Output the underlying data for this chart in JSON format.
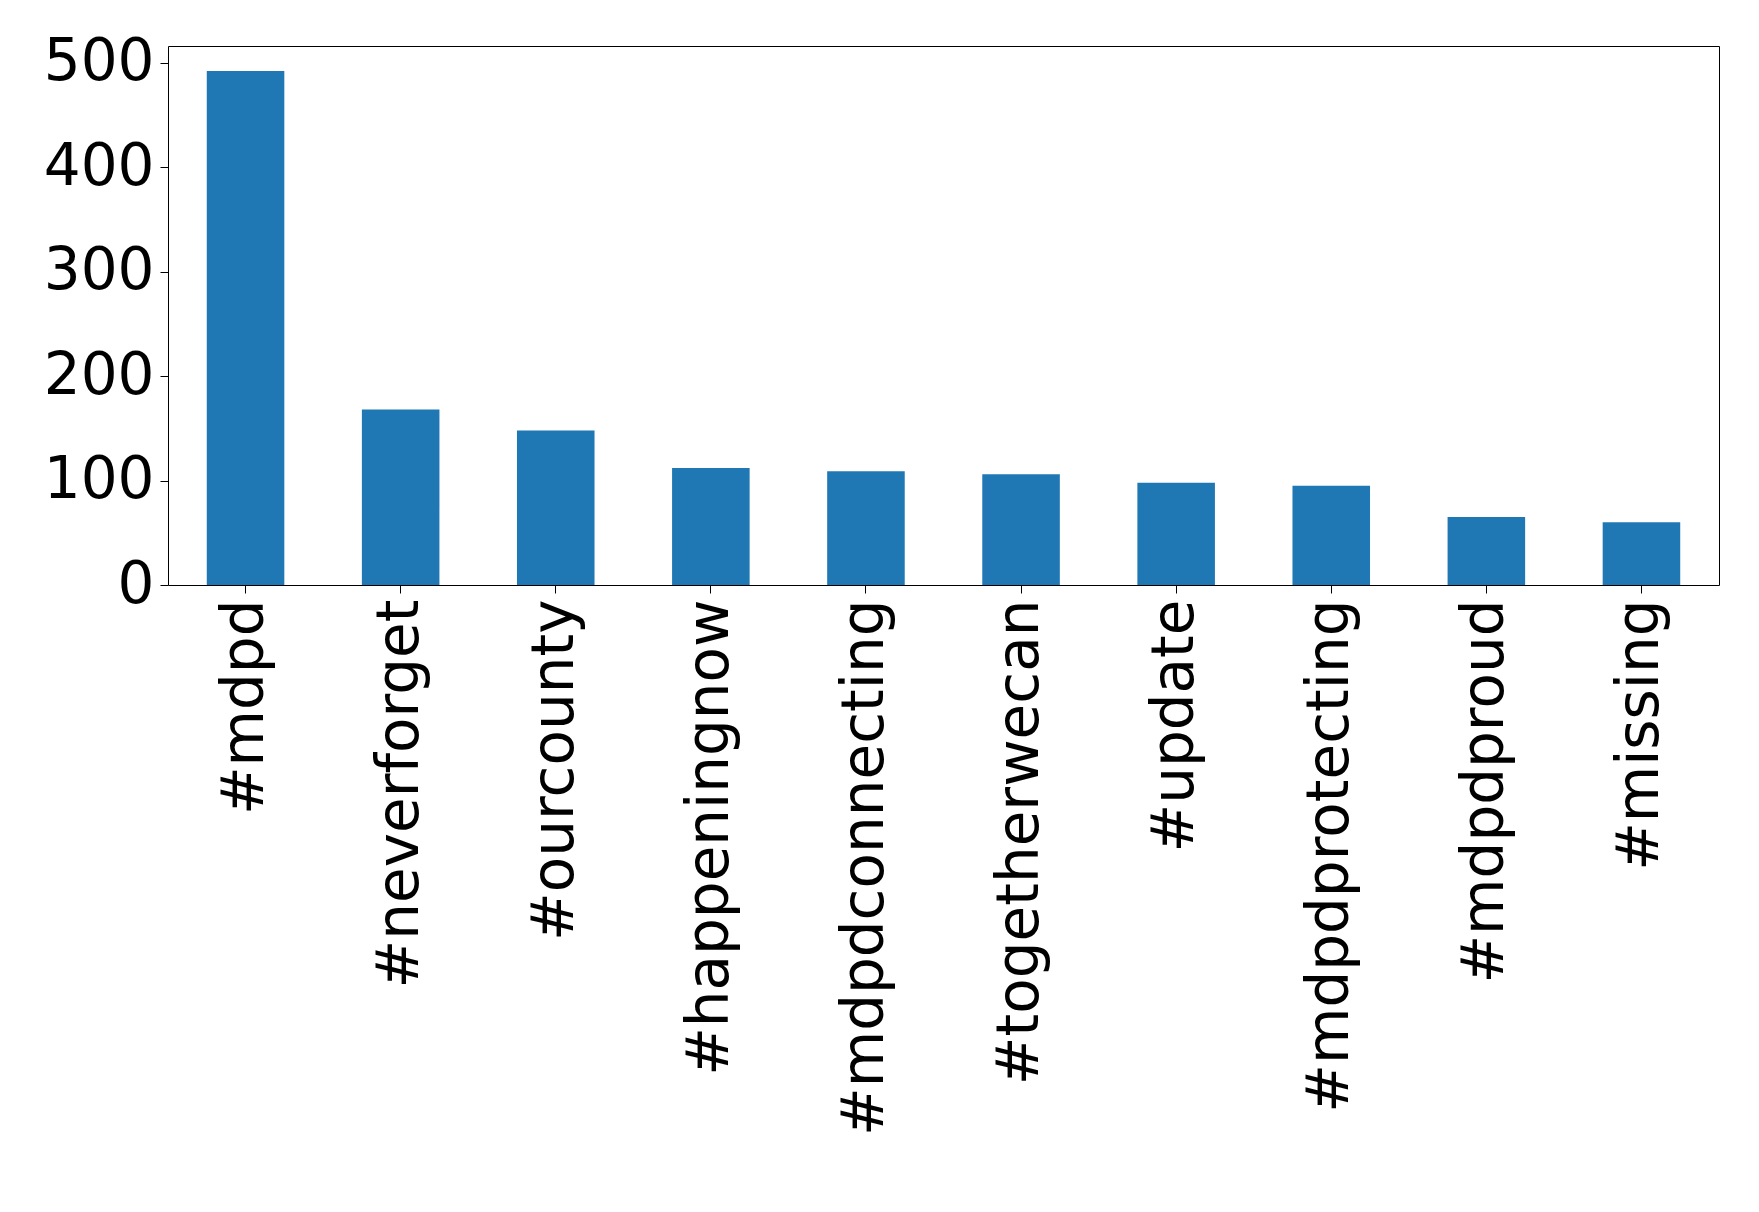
{
  "chart_data": {
    "type": "bar",
    "categories": [
      "#mdpd",
      "#neverforget",
      "#ourcounty",
      "#happeningnow",
      "#mdpdconnecting",
      "#togetherwecan",
      "#update",
      "#mdpdprotecting",
      "#mdpdproud",
      "#missing"
    ],
    "values": [
      492,
      168,
      148,
      112,
      109,
      106,
      98,
      95,
      65,
      60
    ],
    "color": "#1f77b4",
    "ylim": [
      0,
      516
    ],
    "yticks": [
      0,
      100,
      200,
      300,
      400,
      500
    ],
    "grid": false
  }
}
